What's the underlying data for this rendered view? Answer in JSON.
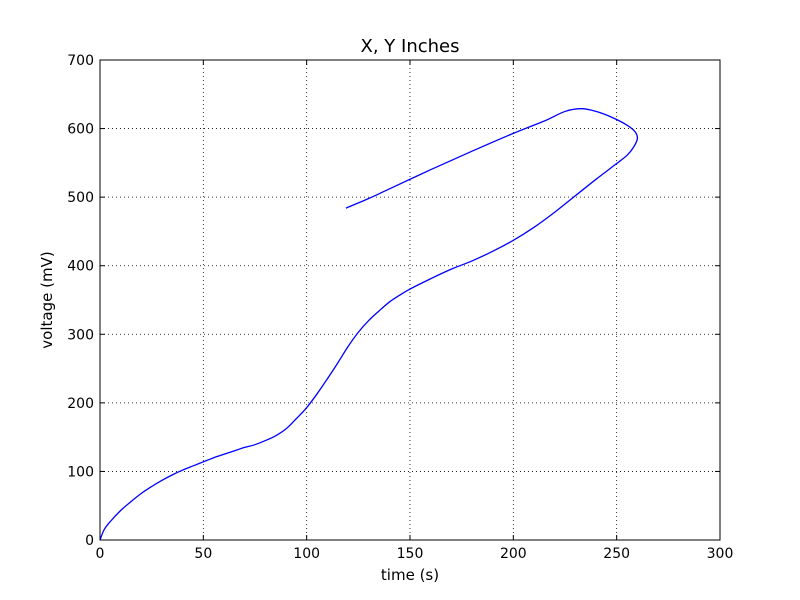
{
  "chart_data": {
    "type": "line",
    "title": "X, Y Inches",
    "xlabel": "time (s)",
    "ylabel": "voltage (mV)",
    "xlim": [
      0,
      300
    ],
    "ylim": [
      0,
      700
    ],
    "x_ticks": [
      0,
      50,
      100,
      150,
      200,
      250,
      300
    ],
    "y_ticks": [
      0,
      100,
      200,
      300,
      400,
      500,
      600,
      700
    ],
    "grid": true,
    "series": [
      {
        "color": "#0000ff",
        "points": [
          [
            0,
            0
          ],
          [
            2,
            15
          ],
          [
            5,
            27
          ],
          [
            10,
            43
          ],
          [
            15,
            56
          ],
          [
            20,
            68
          ],
          [
            25,
            78
          ],
          [
            30,
            87
          ],
          [
            35,
            95
          ],
          [
            40,
            102
          ],
          [
            45,
            108
          ],
          [
            50,
            114
          ],
          [
            55,
            120
          ],
          [
            60,
            125
          ],
          [
            65,
            130
          ],
          [
            70,
            135
          ],
          [
            75,
            139
          ],
          [
            80,
            145
          ],
          [
            85,
            152
          ],
          [
            90,
            162
          ],
          [
            95,
            177
          ],
          [
            100,
            193
          ],
          [
            105,
            213
          ],
          [
            110,
            235
          ],
          [
            115,
            258
          ],
          [
            120,
            282
          ],
          [
            125,
            303
          ],
          [
            130,
            320
          ],
          [
            135,
            334
          ],
          [
            140,
            347
          ],
          [
            145,
            357
          ],
          [
            150,
            366
          ],
          [
            160,
            381
          ],
          [
            170,
            395
          ],
          [
            180,
            407
          ],
          [
            190,
            421
          ],
          [
            200,
            437
          ],
          [
            210,
            456
          ],
          [
            220,
            478
          ],
          [
            230,
            502
          ],
          [
            240,
            526
          ],
          [
            250,
            549
          ],
          [
            255,
            561
          ],
          [
            258,
            572
          ],
          [
            260,
            585
          ],
          [
            259,
            595
          ],
          [
            255,
            605
          ],
          [
            248,
            616
          ],
          [
            240,
            625
          ],
          [
            233,
            629
          ],
          [
            225,
            625
          ],
          [
            215,
            611
          ],
          [
            200,
            593
          ],
          [
            180,
            567
          ],
          [
            160,
            540
          ],
          [
            140,
            512
          ],
          [
            130,
            498
          ],
          [
            119,
            484
          ]
        ]
      }
    ]
  }
}
